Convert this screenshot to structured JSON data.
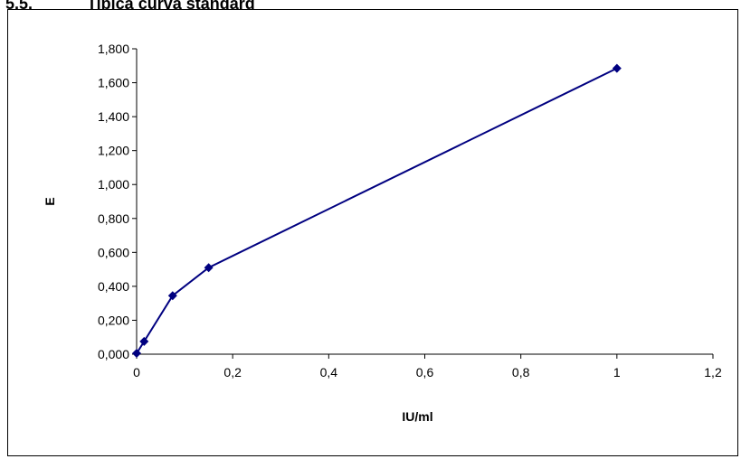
{
  "heading": {
    "number": "5.5.",
    "text": "Tipica curva standard"
  },
  "colors": {
    "series": "#000080",
    "axis": "#000000",
    "frame": "#000000"
  },
  "chart_data": {
    "type": "line",
    "xlabel": "IU/ml",
    "ylabel": "E",
    "xlim": [
      0,
      1.2
    ],
    "ylim": [
      0,
      1.8
    ],
    "x_ticks": [
      0,
      0.2,
      0.4,
      0.6,
      0.8,
      1,
      1.2
    ],
    "x_tick_labels": [
      "0",
      "0,2",
      "0,4",
      "0,6",
      "0,8",
      "1",
      "1,2"
    ],
    "y_ticks": [
      0,
      0.2,
      0.4,
      0.6,
      0.8,
      1.0,
      1.2,
      1.4,
      1.6,
      1.8
    ],
    "y_tick_labels": [
      "0,000",
      "0,200",
      "0,400",
      "0,600",
      "0,800",
      "1,000",
      "1,200",
      "1,400",
      "1,600",
      "1,800"
    ],
    "grid": false,
    "legend": "none",
    "series": [
      {
        "marker": "diamond",
        "x": [
          0,
          0.0156,
          0.075,
          0.15,
          1
        ],
        "y": [
          0.005,
          0.075,
          0.345,
          0.51,
          1.685
        ]
      }
    ]
  }
}
